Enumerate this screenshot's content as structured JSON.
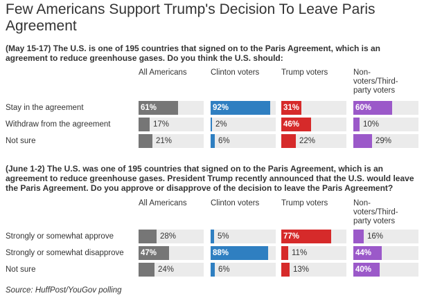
{
  "title": "Few Americans Support Trump's Decision To Leave Paris Agreement",
  "source": "Source: HuffPost/YouGov polling",
  "colors": {
    "all": "#767676",
    "clinton": "#2f7fc1",
    "trump": "#d62a2a",
    "other": "#9b59c9",
    "track": "#ebebeb"
  },
  "chart_data": [
    {
      "type": "bar",
      "title": "(May 15-17) The U.S. is one of 195 countries that signed on to the Paris Agreement, which is an agreement to reduce greenhouse gases. Do you think the U.S. should:",
      "columns": [
        "All Americans",
        "Clinton voters",
        "Trump voters",
        "Non-voters/Third-party voters"
      ],
      "categories": [
        "Stay in the agreement",
        "Withdraw from the agreement",
        "Not sure"
      ],
      "series": [
        {
          "name": "All Americans",
          "values": [
            61,
            17,
            21
          ]
        },
        {
          "name": "Clinton voters",
          "values": [
            92,
            2,
            6
          ]
        },
        {
          "name": "Trump voters",
          "values": [
            31,
            46,
            22
          ]
        },
        {
          "name": "Non-voters/Third-party voters",
          "values": [
            60,
            10,
            29
          ]
        }
      ],
      "unit": "%",
      "xlim": [
        0,
        100
      ]
    },
    {
      "type": "bar",
      "title": "(June 1-2) The U.S. was one of 195 countries that signed on to the Paris Agreement, which is an agreement to reduce greenhouse gases. President Trump recently announced that the U.S. would leave the Paris Agreement. Do you approve or disapprove of the decision to leave the Paris Agreement?",
      "columns": [
        "All Americans",
        "Clinton voters",
        "Trump voters",
        "Non-voters/Third-party voters"
      ],
      "categories": [
        "Strongly or somewhat approve",
        "Strongly or somewhat disapprove",
        "Not sure"
      ],
      "series": [
        {
          "name": "All Americans",
          "values": [
            28,
            47,
            24
          ]
        },
        {
          "name": "Clinton voters",
          "values": [
            5,
            88,
            6
          ]
        },
        {
          "name": "Trump voters",
          "values": [
            77,
            11,
            13
          ]
        },
        {
          "name": "Non-voters/Third-party voters",
          "values": [
            16,
            44,
            40
          ]
        }
      ],
      "unit": "%",
      "xlim": [
        0,
        100
      ]
    }
  ]
}
